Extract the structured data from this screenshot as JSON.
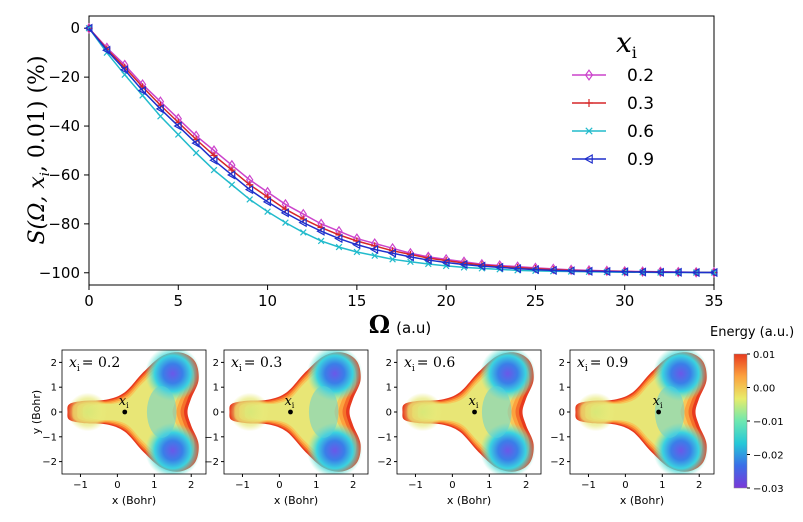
{
  "chart_data": [
    {
      "type": "line",
      "xlabel": "Ω",
      "xlabel_unit": "(a.u)",
      "ylabel": "S(Ω, x",
      "ylabel_sub": "i",
      "ylabel_tail": ", 0.01) (%)",
      "xlim": [
        0,
        35
      ],
      "ylim": [
        -105,
        5
      ],
      "xticks": [
        0,
        5,
        10,
        15,
        20,
        25,
        30,
        35
      ],
      "yticks": [
        0,
        -20,
        -40,
        -60,
        -80,
        -100
      ],
      "legend_title": "x",
      "legend_title_sub": "i",
      "legend_position": "top-right",
      "x": [
        0,
        1,
        2,
        3,
        4,
        5,
        6,
        7,
        8,
        9,
        10,
        11,
        12,
        13,
        14,
        15,
        16,
        17,
        18,
        19,
        20,
        21,
        22,
        23,
        24,
        25,
        26,
        27,
        28,
        29,
        30,
        31,
        32,
        33,
        34,
        35
      ],
      "series": [
        {
          "name": "0.2",
          "color": "#cc44cc",
          "marker": "diamond",
          "values": [
            0,
            -8,
            -15,
            -23,
            -30,
            -37,
            -44,
            -50,
            -56,
            -62,
            -67,
            -72,
            -76,
            -80,
            -83,
            -86,
            -88,
            -90,
            -92,
            -93.5,
            -94.5,
            -95.5,
            -96.5,
            -97,
            -97.5,
            -98,
            -98.4,
            -98.8,
            -99,
            -99.2,
            -99.4,
            -99.5,
            -99.6,
            -99.7,
            -99.8,
            -99.8
          ]
        },
        {
          "name": "0.3",
          "color": "#d62728",
          "marker": "plus",
          "values": [
            0,
            -8.5,
            -16,
            -24,
            -31.5,
            -38.5,
            -45.5,
            -52,
            -58,
            -64,
            -69,
            -74,
            -78,
            -81.5,
            -84.5,
            -87,
            -89,
            -91,
            -92.5,
            -94,
            -95,
            -96,
            -96.8,
            -97.4,
            -97.9,
            -98.3,
            -98.7,
            -99,
            -99.2,
            -99.4,
            -99.5,
            -99.6,
            -99.7,
            -99.8,
            -99.8,
            -99.9
          ]
        },
        {
          "name": "0.6",
          "color": "#22bbcc",
          "marker": "x",
          "values": [
            0,
            -10,
            -19,
            -27.5,
            -36,
            -43.5,
            -51,
            -58,
            -64,
            -70,
            -75,
            -79.5,
            -83.5,
            -87,
            -89.5,
            -91.5,
            -93,
            -94.5,
            -95.5,
            -96.4,
            -97.2,
            -97.8,
            -98.2,
            -98.6,
            -99,
            -99.2,
            -99.4,
            -99.5,
            -99.6,
            -99.7,
            -99.8,
            -99.8,
            -99.9,
            -99.9,
            -99.9,
            -99.9
          ]
        },
        {
          "name": "0.9",
          "color": "#1f2fcc",
          "marker": "triangle-left",
          "values": [
            0,
            -9,
            -17,
            -25.5,
            -33,
            -40,
            -47,
            -54,
            -60,
            -66,
            -71,
            -75.5,
            -79.5,
            -83,
            -86,
            -88.5,
            -90.5,
            -92,
            -93.5,
            -94.8,
            -95.8,
            -96.6,
            -97.3,
            -97.8,
            -98.3,
            -98.7,
            -99,
            -99.2,
            -99.4,
            -99.5,
            -99.6,
            -99.7,
            -99.8,
            -99.8,
            -99.9,
            -99.9
          ]
        }
      ]
    },
    {
      "type": "heatmap",
      "panels": [
        {
          "label_var": "x",
          "label_sub": "i",
          "label_value": "= 0.2",
          "xi": 0.2
        },
        {
          "label_var": "x",
          "label_sub": "i",
          "label_value": "= 0.3",
          "xi": 0.3
        },
        {
          "label_var": "x",
          "label_sub": "i",
          "label_value": "= 0.6",
          "xi": 0.6
        },
        {
          "label_var": "x",
          "label_sub": "i",
          "label_value": "= 0.9",
          "xi": 0.9
        }
      ],
      "point_label": "x",
      "point_label_sub": "i",
      "xlabel": "x (Bohr)",
      "ylabel": "y (Bohr)",
      "xlim": [
        -1.5,
        2.4
      ],
      "ylim": [
        -2.5,
        2.5
      ],
      "xticks": [
        -1,
        0,
        1,
        2
      ],
      "yticks": [
        2,
        1,
        0,
        -1,
        -2
      ],
      "colorbar": {
        "title": "Energy (a.u.)",
        "range": [
          -0.03,
          0.01
        ],
        "tick_values": [
          0.01,
          0.0,
          -0.01,
          -0.02,
          -0.03
        ],
        "tick_labels": [
          "0.01",
          "0.00",
          "−0.01",
          "−0.02",
          "−0.03"
        ],
        "colors": [
          "#7a38d8",
          "#3a6ee8",
          "#25c8d8",
          "#6ee8b0",
          "#e8ec6a",
          "#fca23e",
          "#e83a1e"
        ]
      }
    }
  ]
}
